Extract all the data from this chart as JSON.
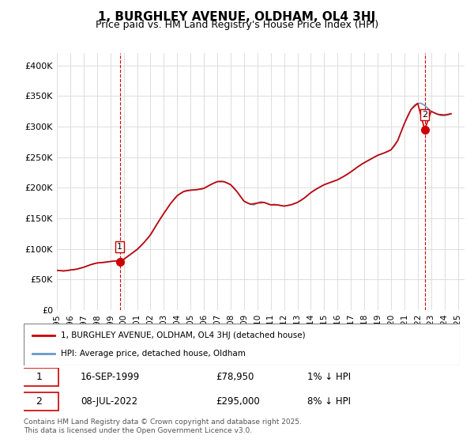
{
  "title": "1, BURGHLEY AVENUE, OLDHAM, OL4 3HJ",
  "subtitle": "Price paid vs. HM Land Registry's House Price Index (HPI)",
  "ylabel": "",
  "xlim_start": 1995.0,
  "xlim_end": 2025.5,
  "ylim": [
    0,
    420000
  ],
  "yticks": [
    0,
    50000,
    100000,
    150000,
    200000,
    250000,
    300000,
    350000,
    400000
  ],
  "ytick_labels": [
    "£0",
    "£50K",
    "£100K",
    "£150K",
    "£200K",
    "£250K",
    "£300K",
    "£350K",
    "£400K"
  ],
  "hpi_color": "#6699cc",
  "price_color": "#cc0000",
  "marker_color": "#cc0000",
  "dashed_color": "#cc0000",
  "background_color": "#ffffff",
  "grid_color": "#dddddd",
  "sale1_x": 1999.7,
  "sale1_y": 78950,
  "sale1_label": "1",
  "sale2_x": 2022.52,
  "sale2_y": 295000,
  "sale2_label": "2",
  "legend_line1": "1, BURGHLEY AVENUE, OLDHAM, OL4 3HJ (detached house)",
  "legend_line2": "HPI: Average price, detached house, Oldham",
  "annotation1_date": "16-SEP-1999",
  "annotation1_price": "£78,950",
  "annotation1_hpi": "1% ↓ HPI",
  "annotation2_date": "08-JUL-2022",
  "annotation2_price": "£295,000",
  "annotation2_hpi": "8% ↓ HPI",
  "footnote": "Contains HM Land Registry data © Crown copyright and database right 2025.\nThis data is licensed under the Open Government Licence v3.0.",
  "hpi_years": [
    1995.0,
    1995.25,
    1995.5,
    1995.75,
    1996.0,
    1996.25,
    1996.5,
    1996.75,
    1997.0,
    1997.25,
    1997.5,
    1997.75,
    1998.0,
    1998.25,
    1998.5,
    1998.75,
    1999.0,
    1999.25,
    1999.5,
    1999.75,
    2000.0,
    2000.25,
    2000.5,
    2000.75,
    2001.0,
    2001.25,
    2001.5,
    2001.75,
    2002.0,
    2002.25,
    2002.5,
    2002.75,
    2003.0,
    2003.25,
    2003.5,
    2003.75,
    2004.0,
    2004.25,
    2004.5,
    2004.75,
    2005.0,
    2005.25,
    2005.5,
    2005.75,
    2006.0,
    2006.25,
    2006.5,
    2006.75,
    2007.0,
    2007.25,
    2007.5,
    2007.75,
    2008.0,
    2008.25,
    2008.5,
    2008.75,
    2009.0,
    2009.25,
    2009.5,
    2009.75,
    2010.0,
    2010.25,
    2010.5,
    2010.75,
    2011.0,
    2011.25,
    2011.5,
    2011.75,
    2012.0,
    2012.25,
    2012.5,
    2012.75,
    2013.0,
    2013.25,
    2013.5,
    2013.75,
    2014.0,
    2014.25,
    2014.5,
    2014.75,
    2015.0,
    2015.25,
    2015.5,
    2015.75,
    2016.0,
    2016.25,
    2016.5,
    2016.75,
    2017.0,
    2017.25,
    2017.5,
    2017.75,
    2018.0,
    2018.25,
    2018.5,
    2018.75,
    2019.0,
    2019.25,
    2019.5,
    2019.75,
    2020.0,
    2020.25,
    2020.5,
    2020.75,
    2021.0,
    2021.25,
    2021.5,
    2021.75,
    2022.0,
    2022.25,
    2022.5,
    2022.75,
    2023.0,
    2023.25,
    2023.5,
    2023.75,
    2024.0,
    2024.25,
    2024.5
  ],
  "hpi_values": [
    65000,
    64500,
    64000,
    64500,
    65500,
    66000,
    67000,
    68500,
    70000,
    72000,
    74000,
    76000,
    77000,
    77500,
    78000,
    78500,
    79500,
    80000,
    80500,
    81500,
    83000,
    87000,
    91000,
    95000,
    99000,
    104000,
    110000,
    116000,
    123000,
    132000,
    141000,
    150000,
    158000,
    166000,
    174000,
    181000,
    187000,
    191000,
    194000,
    196000,
    196000,
    196500,
    197000,
    197500,
    199000,
    202000,
    205000,
    208000,
    210000,
    211000,
    210000,
    208000,
    205000,
    200000,
    193000,
    185000,
    178000,
    175000,
    173000,
    172000,
    175000,
    177000,
    176000,
    174000,
    172000,
    173000,
    172000,
    171000,
    170000,
    171000,
    172000,
    174000,
    176000,
    179000,
    183000,
    187000,
    192000,
    196000,
    199000,
    202000,
    205000,
    207000,
    209000,
    211000,
    213000,
    216000,
    219000,
    222000,
    226000,
    230000,
    234000,
    238000,
    241000,
    244000,
    247000,
    250000,
    253000,
    255000,
    257000,
    259000,
    262000,
    268000,
    277000,
    291000,
    305000,
    318000,
    328000,
    335000,
    338000,
    338000,
    335000,
    330000,
    325000,
    322000,
    320000,
    318000,
    318000,
    319000,
    321000
  ],
  "price_line_years": [
    1995.0,
    1995.5,
    1996.0,
    1996.5,
    1997.0,
    1997.5,
    1998.0,
    1998.5,
    1999.0,
    1999.5,
    1999.7,
    2000.0,
    2000.5,
    2001.0,
    2001.5,
    2002.0,
    2002.5,
    2003.0,
    2003.5,
    2004.0,
    2004.5,
    2005.0,
    2005.5,
    2006.0,
    2006.5,
    2007.0,
    2007.5,
    2008.0,
    2008.5,
    2009.0,
    2009.5,
    2010.0,
    2010.5,
    2011.0,
    2011.5,
    2012.0,
    2012.5,
    2013.0,
    2013.5,
    2014.0,
    2014.5,
    2015.0,
    2015.5,
    2016.0,
    2016.5,
    2017.0,
    2017.5,
    2018.0,
    2018.5,
    2019.0,
    2019.5,
    2020.0,
    2020.5,
    2021.0,
    2021.5,
    2022.0,
    2022.52,
    2023.0,
    2023.5,
    2024.0,
    2024.5
  ],
  "price_line_values": [
    65000,
    64000,
    65500,
    67000,
    70000,
    74000,
    77000,
    78000,
    79500,
    80500,
    78950,
    83000,
    91000,
    99000,
    110000,
    123000,
    141000,
    158000,
    174000,
    187000,
    194000,
    196000,
    197000,
    199000,
    205000,
    210000,
    210000,
    205000,
    193000,
    178000,
    173000,
    175000,
    176000,
    172000,
    172000,
    170000,
    172000,
    176000,
    183000,
    192000,
    199000,
    205000,
    209000,
    213000,
    219000,
    226000,
    234000,
    241000,
    247000,
    253000,
    257000,
    262000,
    277000,
    305000,
    328000,
    338000,
    295000,
    325000,
    320000,
    319000,
    321000
  ],
  "xtick_years": [
    1995,
    1996,
    1997,
    1998,
    1999,
    2000,
    2001,
    2002,
    2003,
    2004,
    2005,
    2006,
    2007,
    2008,
    2009,
    2010,
    2011,
    2012,
    2013,
    2014,
    2015,
    2016,
    2017,
    2018,
    2019,
    2020,
    2021,
    2022,
    2023,
    2024,
    2025
  ]
}
